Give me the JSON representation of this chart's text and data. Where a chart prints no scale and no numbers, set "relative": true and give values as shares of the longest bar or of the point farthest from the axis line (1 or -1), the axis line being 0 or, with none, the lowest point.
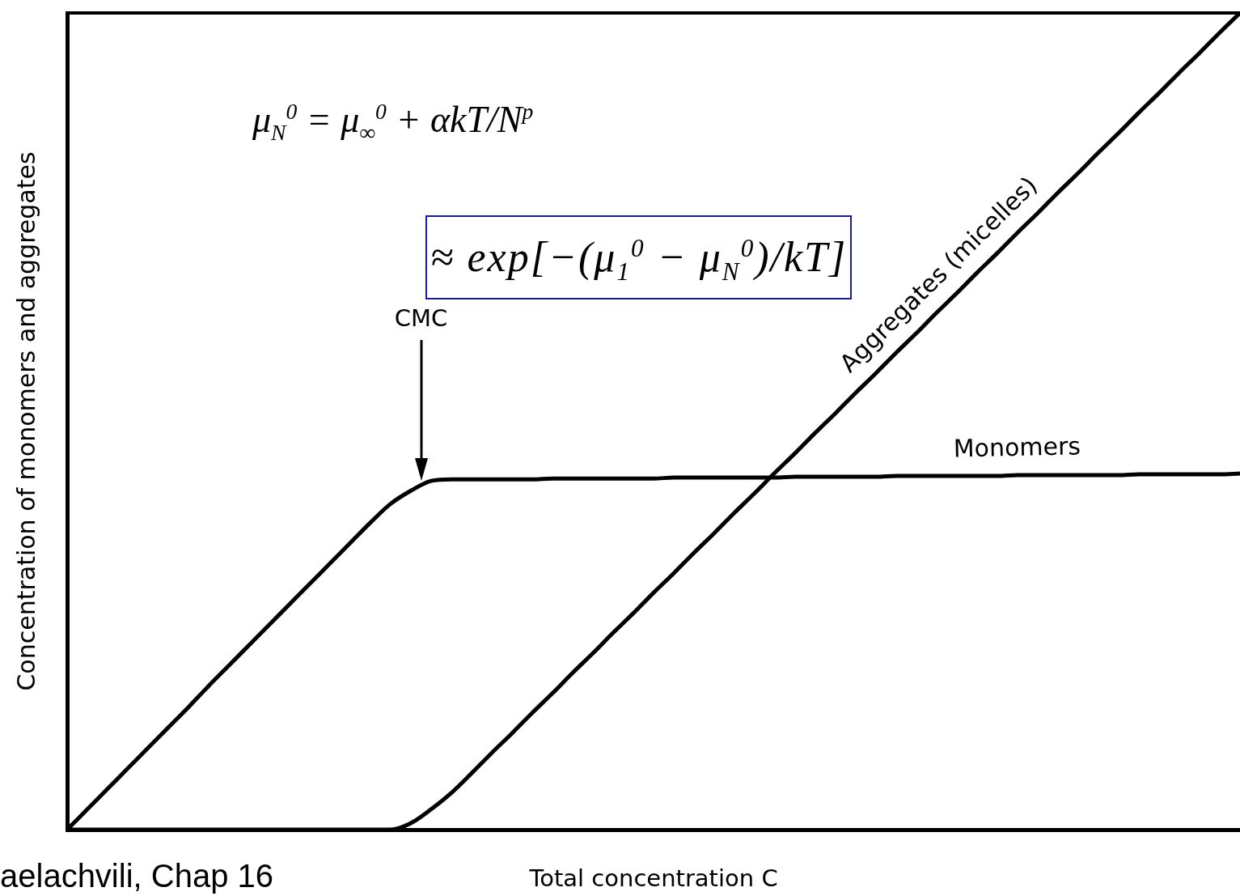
{
  "chart_data": {
    "type": "line",
    "relative": true,
    "xlabel": "Total concentration C",
    "ylabel": "Concentration of monomers and aggregates",
    "categories": [
      null,
      null,
      null,
      null,
      null,
      null,
      null,
      null,
      null,
      null,
      null,
      null,
      null,
      null,
      null,
      null,
      null,
      null,
      null,
      null,
      null,
      null,
      null,
      null,
      null,
      null,
      null,
      null,
      null,
      null,
      null,
      null,
      null,
      null,
      null,
      null,
      null,
      null,
      null,
      null,
      null,
      null,
      null,
      null,
      null,
      null,
      null,
      null,
      null,
      null,
      null,
      null,
      null,
      null,
      null,
      null,
      null,
      null,
      null
    ],
    "series": [
      {
        "name": "Monomers",
        "color": "#000000",
        "values": [
          0,
          0.025,
          0.05,
          0.075,
          0.1,
          0.125,
          0.15,
          0.176,
          0.201,
          0.226,
          0.251,
          0.276,
          0.301,
          0.326,
          0.351,
          0.376,
          0.399,
          0.415,
          0.427,
          0.429,
          0.429,
          0.429,
          0.429,
          0.429,
          0.43,
          0.43,
          0.43,
          0.43,
          0.43,
          0.43,
          0.431,
          0.431,
          0.431,
          0.431,
          0.431,
          0.431,
          0.432,
          0.432,
          0.432,
          0.432,
          0.432,
          0.433,
          0.433,
          0.433,
          0.433,
          0.433,
          0.433,
          0.434,
          0.434,
          0.434,
          0.434,
          0.434,
          0.434,
          0.435,
          0.435,
          0.435,
          0.435,
          0.435,
          0.436
        ]
      },
      {
        "name": "Aggregates (micelles)",
        "color": "#000000",
        "values": [
          0,
          0,
          0,
          0,
          0,
          0,
          0,
          0,
          0,
          0,
          0,
          0,
          0,
          0,
          0,
          0,
          0,
          0.008,
          0.025,
          0.045,
          0.069,
          0.094,
          0.118,
          0.143,
          0.167,
          0.192,
          0.216,
          0.241,
          0.265,
          0.29,
          0.314,
          0.339,
          0.363,
          0.388,
          0.412,
          0.437,
          0.461,
          0.486,
          0.51,
          0.535,
          0.559,
          0.584,
          0.608,
          0.633,
          0.657,
          0.682,
          0.706,
          0.731,
          0.755,
          0.78,
          0.804,
          0.829,
          0.853,
          0.878,
          0.902,
          0.927,
          0.951,
          0.976,
          1
        ]
      }
    ],
    "annotations": [
      "μ$_{N}$$^{0}$ = μ$_{∞}$$^{0}$ + αkT/N$^{p}$",
      "≈ exp[−(μ$_{1}$$^{0}$ − μ$_{N}$$^{0}$)/kT]",
      "CMC",
      "aelachvili, Chap 16"
    ],
    "marker": "none",
    "line_style": "solid",
    "tick_labels": false
  }
}
